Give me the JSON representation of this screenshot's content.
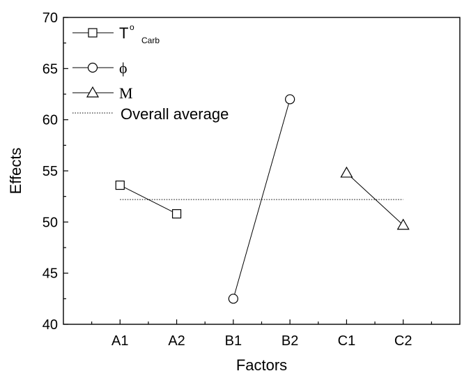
{
  "chart_data": {
    "type": "line",
    "xlabel": "Factors",
    "ylabel": "Effects",
    "categories": [
      "A1",
      "A2",
      "B1",
      "B2",
      "C1",
      "C2"
    ],
    "ylim": [
      40,
      70
    ],
    "yticks": [
      40,
      45,
      50,
      55,
      60,
      65,
      70
    ],
    "grid": false,
    "legend_position": "top-left",
    "series": [
      {
        "name": "T°Carb",
        "name_main": "T",
        "name_sup": "o",
        "name_sub": "Carb",
        "marker": "square",
        "x": [
          "A1",
          "A2"
        ],
        "values": [
          53.6,
          50.8
        ]
      },
      {
        "name": "ϕ",
        "marker": "circle",
        "x": [
          "B1",
          "B2"
        ],
        "values": [
          42.5,
          62.0
        ]
      },
      {
        "name": "M",
        "marker": "triangle",
        "x": [
          "C1",
          "C2"
        ],
        "values": [
          54.8,
          49.7
        ]
      }
    ],
    "reference_line": {
      "name": "Overall average",
      "value": 52.2,
      "style": "dotted"
    }
  }
}
